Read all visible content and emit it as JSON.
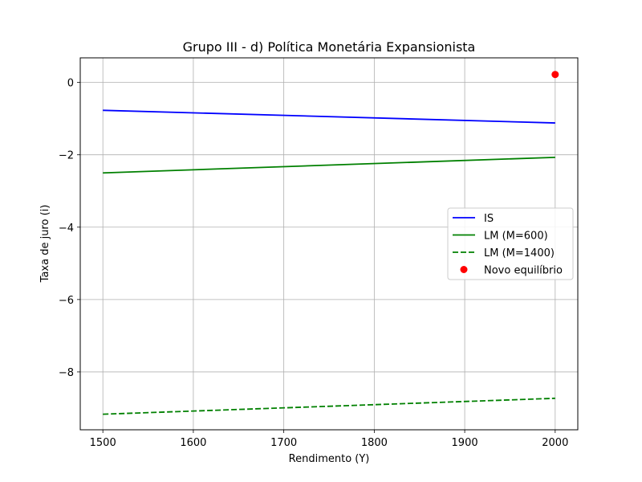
{
  "chart_data": {
    "type": "line",
    "title": "Grupo III - d) Política Monetária Expansionista",
    "xlabel": "Rendimento (Y)",
    "ylabel": "Taxa de juro (i)",
    "xlim": [
      1475,
      2025
    ],
    "ylim": [
      -9.6,
      0.68
    ],
    "xticks": [
      1500,
      1600,
      1700,
      1800,
      1900,
      2000
    ],
    "xtick_labels": [
      "1500",
      "1600",
      "1700",
      "1800",
      "1900",
      "2000"
    ],
    "yticks": [
      0,
      -2,
      -4,
      -6,
      -8
    ],
    "ytick_labels": [
      "0",
      "−2",
      "−4",
      "−6",
      "−8"
    ],
    "grid": true,
    "legend_position": "center-right",
    "series": [
      {
        "name": "IS",
        "style": "solid",
        "color": "#0000ff",
        "x": [
          1500,
          2000
        ],
        "y": [
          -0.77,
          -1.12
        ]
      },
      {
        "name": "LM (M=600)",
        "style": "solid",
        "color": "#008000",
        "x": [
          1500,
          2000
        ],
        "y": [
          -2.5,
          -2.07
        ]
      },
      {
        "name": "LM (M=1400)",
        "style": "dashed",
        "color": "#008000",
        "x": [
          1500,
          2000
        ],
        "y": [
          -9.17,
          -8.73
        ]
      }
    ],
    "points": [
      {
        "name": "Novo equilíbrio",
        "color": "#ff0000",
        "x": 2000,
        "y": 0.22
      }
    ]
  }
}
